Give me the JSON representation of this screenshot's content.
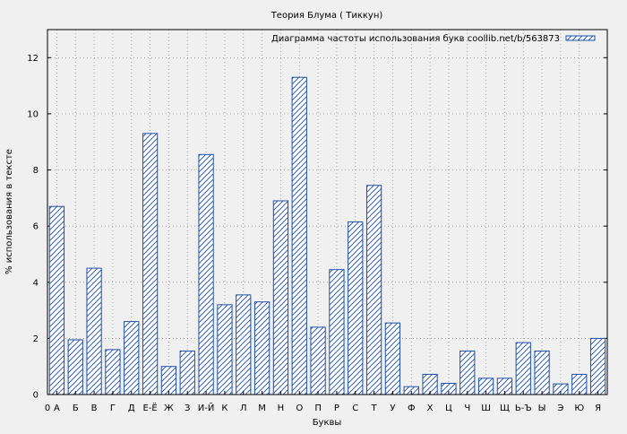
{
  "chart_data": {
    "type": "bar",
    "title": "Теория Блума ( Тиккун)",
    "xlabel": "Буквы",
    "ylabel": "% использования в тексте",
    "legend_label": "Диаграмма частоты использования букв coollib.net/b/563873",
    "legend_position": "top-right",
    "grid": true,
    "ylim": [
      0,
      13
    ],
    "yticks": [
      "0",
      "2",
      "4",
      "6",
      "8",
      "10",
      "12"
    ],
    "x_origin_label": "0",
    "categories": [
      "А",
      "Б",
      "В",
      "Г",
      "Д",
      "Е-Ё",
      "Ж",
      "З",
      "И-Й",
      "К",
      "Л",
      "М",
      "Н",
      "О",
      "П",
      "Р",
      "С",
      "Т",
      "У",
      "Ф",
      "Х",
      "Ц",
      "Ч",
      "Ш",
      "Щ",
      "Ь-Ъ",
      "Ы",
      "Э",
      "Ю",
      "Я"
    ],
    "values": [
      6.7,
      1.95,
      4.5,
      1.6,
      2.6,
      9.3,
      1.0,
      1.55,
      8.55,
      3.2,
      3.55,
      3.3,
      6.9,
      11.3,
      2.4,
      4.45,
      6.15,
      7.45,
      2.55,
      0.28,
      0.72,
      0.4,
      1.55,
      0.58,
      0.58,
      1.85,
      1.55,
      0.38,
      0.72,
      2.0
    ],
    "colors": {
      "bar_stroke": "#1f4fa8",
      "hatch": "#1f4fa8",
      "bar_fill": "#ffffff",
      "plot_bg": "#f0f0f0",
      "grid": "#808080"
    }
  }
}
